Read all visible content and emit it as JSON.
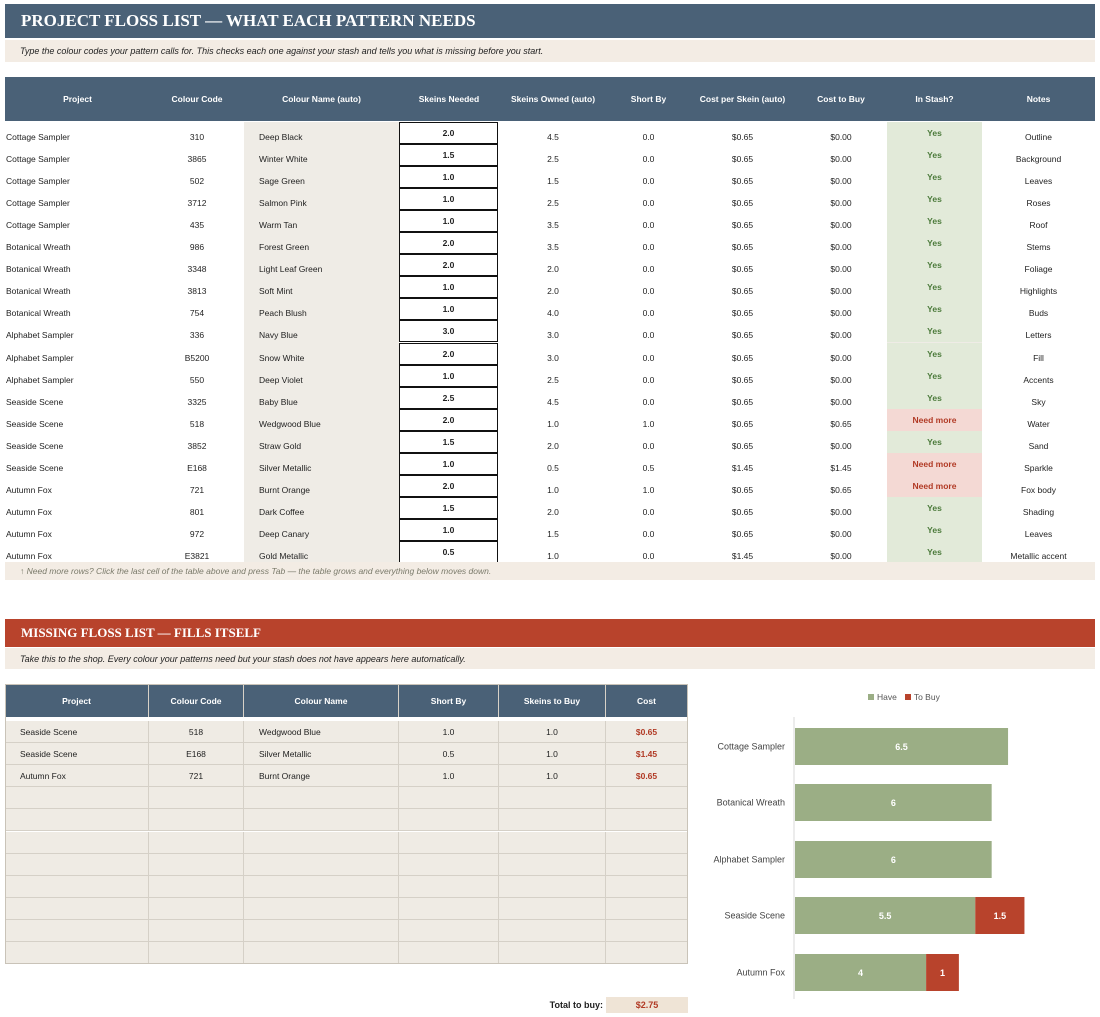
{
  "colors": {
    "header": "#4a6177",
    "accent": "#b8432c",
    "yes_bg": "#e2ead9",
    "yes_text": "#4b7a3a",
    "need_bg": "#f4d9d4",
    "need_text": "#b13a25",
    "have": "#9bae85",
    "tobuy": "#b8432c",
    "stripe": "#efece6"
  },
  "title": "PROJECT FLOSS LIST — WHAT EACH PATTERN NEEDS",
  "subtitle": "Type the colour codes your pattern calls for. This checks each one against your stash and tells you what is missing before you start.",
  "main_table": {
    "headers": [
      "Project",
      "Colour Code",
      "Colour Name (auto)",
      "Skeins Needed",
      "Skeins Owned (auto)",
      "Short By",
      "Cost per Skein (auto)",
      "Cost to Buy",
      "In Stash?",
      "Notes"
    ],
    "rows": [
      [
        "Cottage Sampler",
        "310",
        "Deep Black",
        "2.0",
        "4.5",
        "0.0",
        "$0.65",
        "$0.00",
        "Yes",
        "Outline"
      ],
      [
        "Cottage Sampler",
        "3865",
        "Winter White",
        "1.5",
        "2.5",
        "0.0",
        "$0.65",
        "$0.00",
        "Yes",
        "Background"
      ],
      [
        "Cottage Sampler",
        "502",
        "Sage Green",
        "1.0",
        "1.5",
        "0.0",
        "$0.65",
        "$0.00",
        "Yes",
        "Leaves"
      ],
      [
        "Cottage Sampler",
        "3712",
        "Salmon Pink",
        "1.0",
        "2.5",
        "0.0",
        "$0.65",
        "$0.00",
        "Yes",
        "Roses"
      ],
      [
        "Cottage Sampler",
        "435",
        "Warm Tan",
        "1.0",
        "3.5",
        "0.0",
        "$0.65",
        "$0.00",
        "Yes",
        "Roof"
      ],
      [
        "Botanical Wreath",
        "986",
        "Forest Green",
        "2.0",
        "3.5",
        "0.0",
        "$0.65",
        "$0.00",
        "Yes",
        "Stems"
      ],
      [
        "Botanical Wreath",
        "3348",
        "Light Leaf Green",
        "2.0",
        "2.0",
        "0.0",
        "$0.65",
        "$0.00",
        "Yes",
        "Foliage"
      ],
      [
        "Botanical Wreath",
        "3813",
        "Soft Mint",
        "1.0",
        "2.0",
        "0.0",
        "$0.65",
        "$0.00",
        "Yes",
        "Highlights"
      ],
      [
        "Botanical Wreath",
        "754",
        "Peach Blush",
        "1.0",
        "4.0",
        "0.0",
        "$0.65",
        "$0.00",
        "Yes",
        "Buds"
      ],
      [
        "Alphabet Sampler",
        "336",
        "Navy Blue",
        "3.0",
        "3.0",
        "0.0",
        "$0.65",
        "$0.00",
        "Yes",
        "Letters"
      ],
      [
        "Alphabet Sampler",
        "B5200",
        "Snow White",
        "2.0",
        "3.0",
        "0.0",
        "$0.65",
        "$0.00",
        "Yes",
        "Fill"
      ],
      [
        "Alphabet Sampler",
        "550",
        "Deep Violet",
        "1.0",
        "2.5",
        "0.0",
        "$0.65",
        "$0.00",
        "Yes",
        "Accents"
      ],
      [
        "Seaside Scene",
        "3325",
        "Baby Blue",
        "2.5",
        "4.5",
        "0.0",
        "$0.65",
        "$0.00",
        "Yes",
        "Sky"
      ],
      [
        "Seaside Scene",
        "518",
        "Wedgwood Blue",
        "2.0",
        "1.0",
        "1.0",
        "$0.65",
        "$0.65",
        "Need more",
        "Water"
      ],
      [
        "Seaside Scene",
        "3852",
        "Straw Gold",
        "1.5",
        "2.0",
        "0.0",
        "$0.65",
        "$0.00",
        "Yes",
        "Sand"
      ],
      [
        "Seaside Scene",
        "E168",
        "Silver Metallic",
        "1.0",
        "0.5",
        "0.5",
        "$1.45",
        "$1.45",
        "Need more",
        "Sparkle"
      ],
      [
        "Autumn Fox",
        "721",
        "Burnt Orange",
        "2.0",
        "1.0",
        "1.0",
        "$0.65",
        "$0.65",
        "Need more",
        "Fox body"
      ],
      [
        "Autumn Fox",
        "801",
        "Dark Coffee",
        "1.5",
        "2.0",
        "0.0",
        "$0.65",
        "$0.00",
        "Yes",
        "Shading"
      ],
      [
        "Autumn Fox",
        "972",
        "Deep Canary",
        "1.0",
        "1.5",
        "0.0",
        "$0.65",
        "$0.00",
        "Yes",
        "Leaves"
      ],
      [
        "Autumn Fox",
        "E3821",
        "Gold Metallic",
        "0.5",
        "1.0",
        "0.0",
        "$1.45",
        "$0.00",
        "Yes",
        "Metallic accent"
      ]
    ]
  },
  "hint": "↑ Need more rows? Click the last cell of the table above and press Tab — the table grows and everything below moves down.",
  "missing": {
    "title": "MISSING FLOSS LIST — FILLS ITSELF",
    "subtitle": "Take this to the shop. Every colour your patterns need but your stash does not have appears here automatically.",
    "headers": [
      "Project",
      "Colour Code",
      "Colour Name",
      "Short By",
      "Skeins to Buy",
      "Cost"
    ],
    "rows": [
      [
        "Seaside Scene",
        "518",
        "Wedgwood Blue",
        "1.0",
        "1.0",
        "$0.65"
      ],
      [
        "Seaside Scene",
        "E168",
        "Silver Metallic",
        "0.5",
        "1.0",
        "$1.45"
      ],
      [
        "Autumn Fox",
        "721",
        "Burnt Orange",
        "1.0",
        "1.0",
        "$0.65"
      ],
      [
        "",
        "",
        "",
        "",
        "",
        ""
      ],
      [
        "",
        "",
        "",
        "",
        "",
        ""
      ],
      [
        "",
        "",
        "",
        "",
        "",
        ""
      ],
      [
        "",
        "",
        "",
        "",
        "",
        ""
      ],
      [
        "",
        "",
        "",
        "",
        "",
        ""
      ],
      [
        "",
        "",
        "",
        "",
        "",
        ""
      ],
      [
        "",
        "",
        "",
        "",
        "",
        ""
      ],
      [
        "",
        "",
        "",
        "",
        "",
        ""
      ]
    ],
    "total_label": "Total to buy:",
    "total_value": "$2.75"
  },
  "chart_data": {
    "type": "bar",
    "orientation": "horizontal",
    "stacked": true,
    "categories": [
      "Cottage Sampler",
      "Botanical Wreath",
      "Alphabet Sampler",
      "Seaside Scene",
      "Autumn Fox"
    ],
    "series": [
      {
        "name": "Have",
        "values": [
          6.5,
          6,
          6,
          5.5,
          4
        ],
        "color": "#9bae85"
      },
      {
        "name": "To Buy",
        "values": [
          0,
          0,
          0,
          1.5,
          1
        ],
        "color": "#b8432c"
      }
    ],
    "xlim": [
      0,
      9
    ],
    "legend": "top"
  }
}
